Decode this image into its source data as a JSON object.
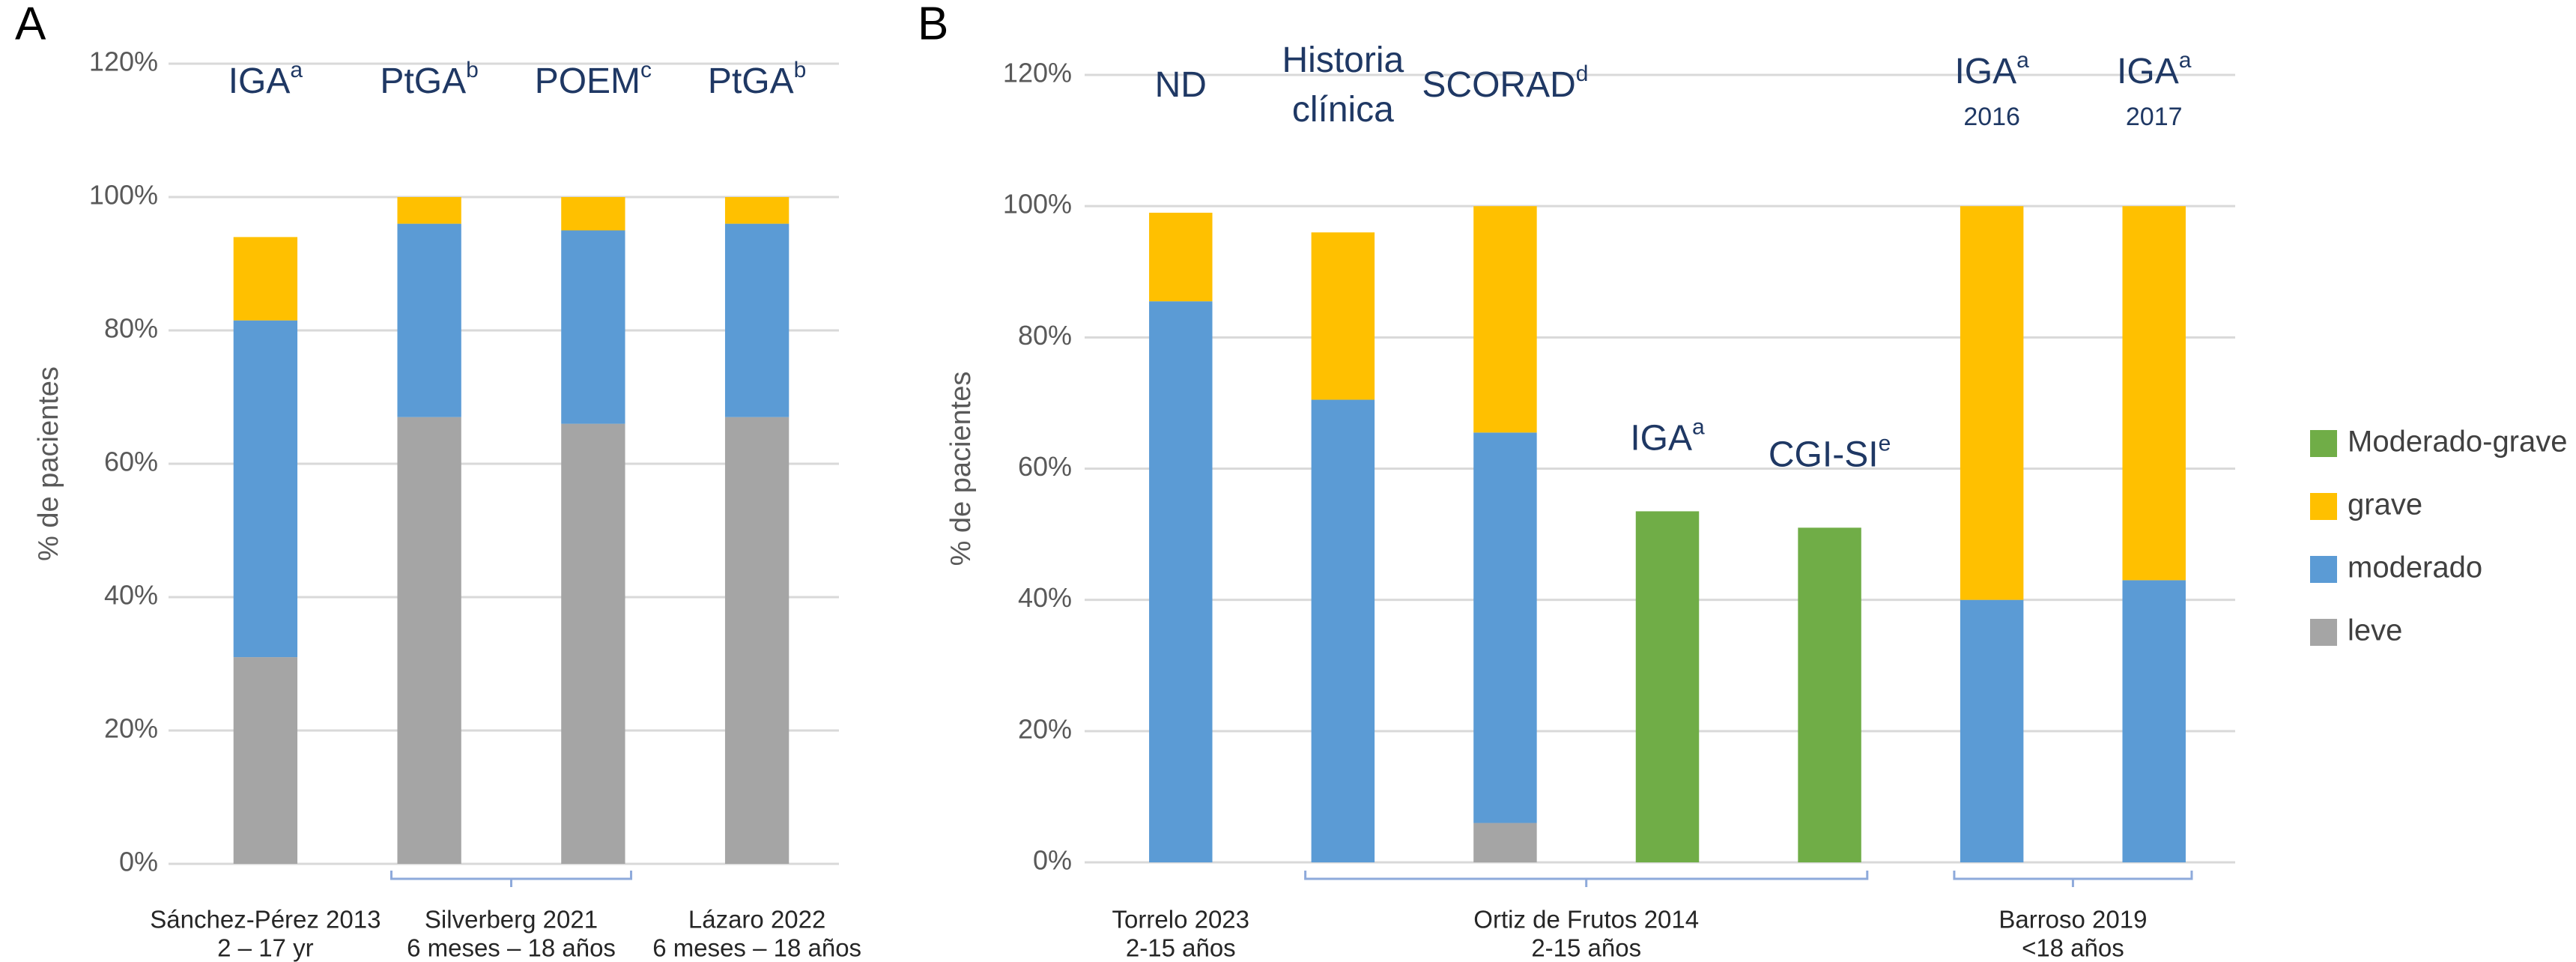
{
  "chart_data": [
    {
      "type": "bar",
      "stacked": true,
      "panel_label": "A",
      "ylabel": "% de pacientes",
      "ylim": [
        0,
        120
      ],
      "yticks": [
        {
          "value": 0,
          "label": "0%"
        },
        {
          "value": 20,
          "label": "20%"
        },
        {
          "value": 40,
          "label": "40%"
        },
        {
          "value": 60,
          "label": "60%"
        },
        {
          "value": 80,
          "label": "80%"
        },
        {
          "value": 100,
          "label": "100%"
        },
        {
          "value": 120,
          "label": "120%"
        }
      ],
      "grid": true,
      "legend": false,
      "categories": [
        {
          "lines": [
            "IGA"
          ],
          "sup": "a"
        },
        {
          "lines": [
            "PtGA"
          ],
          "sup": "b"
        },
        {
          "lines": [
            "POEM"
          ],
          "sup": "c"
        },
        {
          "lines": [
            "PtGA"
          ],
          "sup": "b"
        }
      ],
      "groups": [
        {
          "lines": [
            "Sánchez-Pérez 2013",
            "2 – 17 yr"
          ],
          "from": 0,
          "to": 0
        },
        {
          "lines": [
            "Silverberg 2021",
            "6 meses – 18 años"
          ],
          "from": 1,
          "to": 2
        },
        {
          "lines": [
            "Lázaro 2022",
            "6 meses – 18 años"
          ],
          "from": 3,
          "to": 3
        }
      ],
      "series": [
        {
          "name": "leve",
          "color": "#a5a5a5",
          "values": [
            31,
            67,
            66,
            67
          ]
        },
        {
          "name": "moderado",
          "color": "#5b9bd5",
          "values": [
            50.5,
            29,
            29,
            29
          ]
        },
        {
          "name": "grave",
          "color": "#ffc000",
          "values": [
            12.5,
            4,
            5,
            4
          ]
        }
      ]
    },
    {
      "type": "bar",
      "stacked": true,
      "panel_label": "B",
      "ylabel": "% de pacientes",
      "ylim": [
        0,
        120
      ],
      "yticks": [
        {
          "value": 0,
          "label": "0%"
        },
        {
          "value": 20,
          "label": "20%"
        },
        {
          "value": 40,
          "label": "40%"
        },
        {
          "value": 60,
          "label": "60%"
        },
        {
          "value": 80,
          "label": "80%"
        },
        {
          "value": 100,
          "label": "100%"
        },
        {
          "value": 120,
          "label": "120%"
        }
      ],
      "grid": true,
      "legend": "right",
      "categories": [
        {
          "lines": [
            "ND"
          ]
        },
        {
          "lines": [
            "Historia",
            "clínica"
          ]
        },
        {
          "lines": [
            "SCORAD"
          ],
          "sup": "d"
        },
        {
          "lines": [
            "IGA"
          ],
          "sup": "a"
        },
        {
          "lines": [
            "CGI-SI"
          ],
          "sup": "e"
        },
        {
          "lines": [
            "IGA"
          ],
          "sup": "a",
          "note": "2016"
        },
        {
          "lines": [
            "IGA"
          ],
          "sup": "a",
          "note": "2017"
        }
      ],
      "groups": [
        {
          "lines": [
            "Torrelo 2023",
            "2-15 años"
          ],
          "from": 0,
          "to": 0
        },
        {
          "lines": [
            "Ortiz de Frutos 2014",
            "2-15 años"
          ],
          "from": 1,
          "to": 4
        },
        {
          "lines": [
            "Barroso 2019",
            "<18 años"
          ],
          "from": 5,
          "to": 6
        }
      ],
      "series": [
        {
          "name": "leve",
          "color": "#a5a5a5",
          "values": [
            null,
            null,
            6,
            null,
            null,
            null,
            null
          ]
        },
        {
          "name": "moderado",
          "color": "#5b9bd5",
          "values": [
            85.5,
            70.5,
            59.5,
            null,
            null,
            40,
            43
          ]
        },
        {
          "name": "grave",
          "color": "#ffc000",
          "values": [
            13.5,
            25.5,
            34.5,
            null,
            null,
            60,
            57
          ]
        },
        {
          "name": "Moderado-grave",
          "color": "#70ad47",
          "values": [
            null,
            null,
            null,
            53.5,
            51,
            null,
            null
          ]
        }
      ]
    }
  ]
}
